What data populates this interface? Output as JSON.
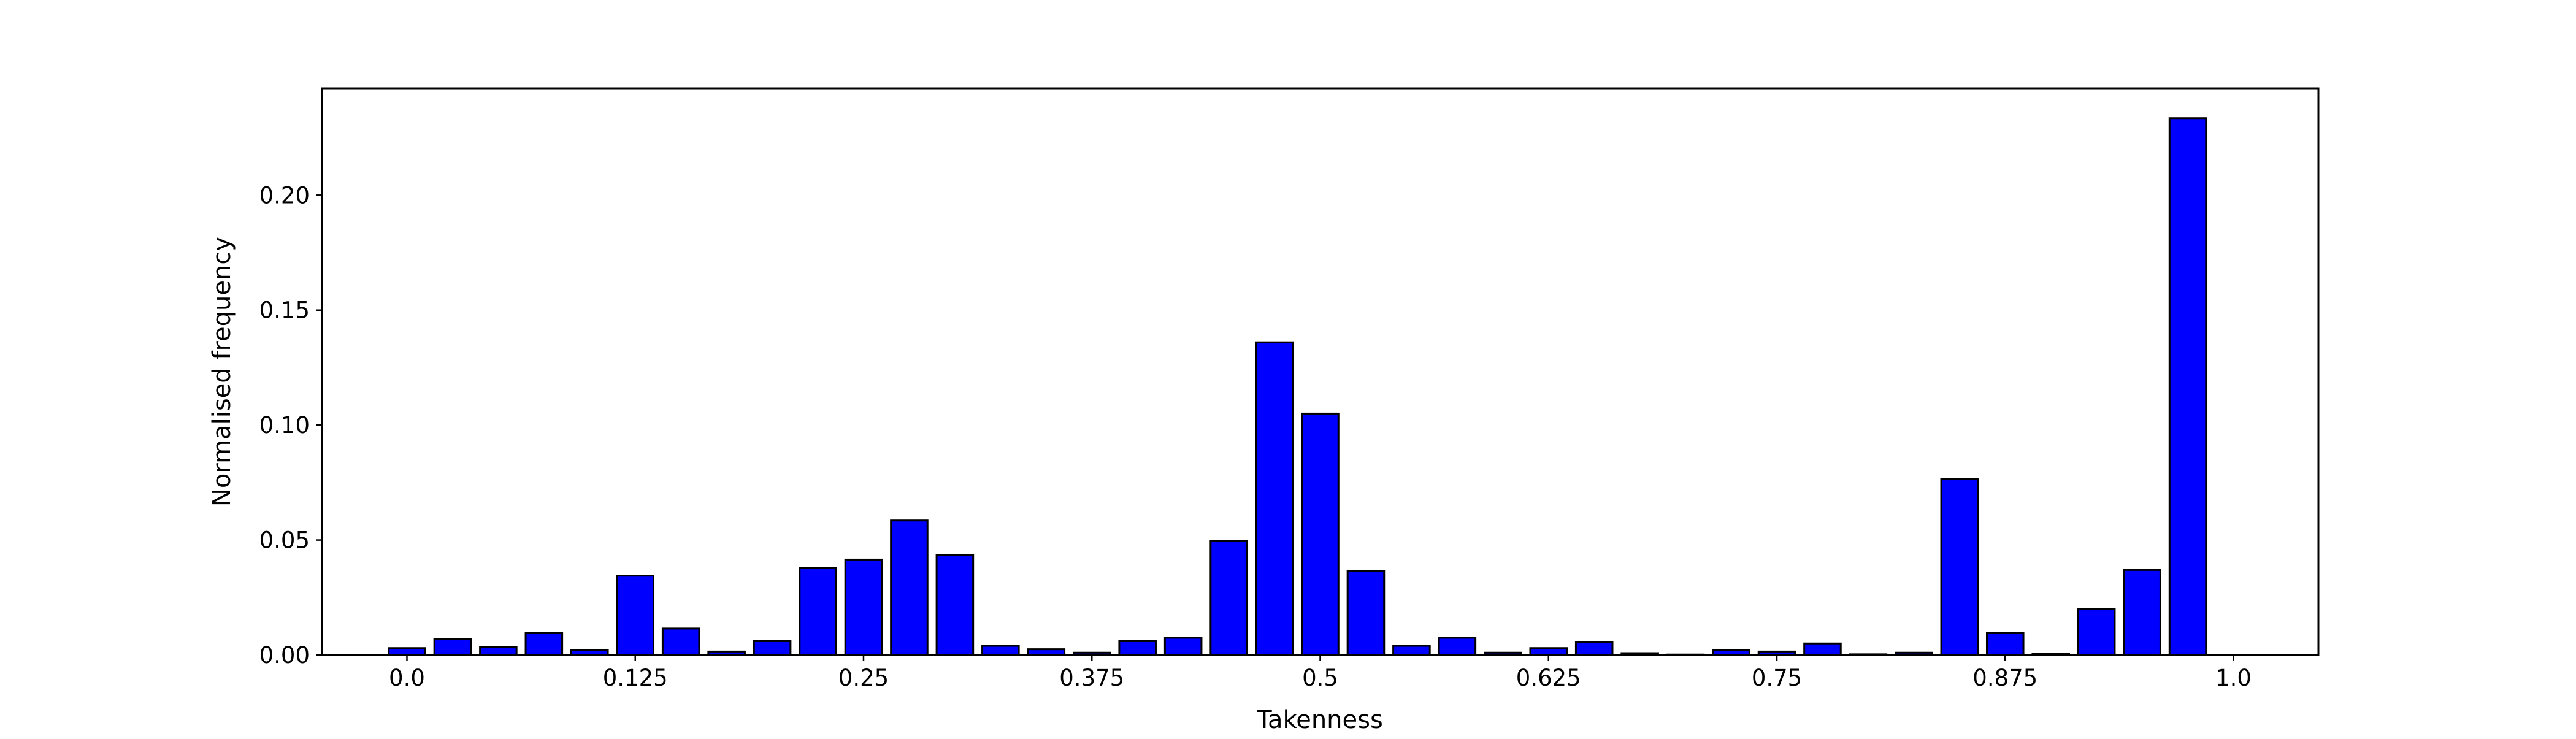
{
  "chart_data": {
    "type": "bar",
    "title": "",
    "xlabel": "Takenness",
    "ylabel": "Normalised frequency",
    "xlim": [
      -0.0465,
      1.0465
    ],
    "ylim": [
      0,
      0.2465
    ],
    "xticks": [
      0.0,
      0.125,
      0.25,
      0.375,
      0.5,
      0.625,
      0.75,
      0.875,
      1.0
    ],
    "xtick_labels": [
      "0.0",
      "0.125",
      "0.25",
      "0.375",
      "0.5",
      "0.625",
      "0.75",
      "0.875",
      "1.0"
    ],
    "yticks": [
      0.0,
      0.05,
      0.1,
      0.15,
      0.2
    ],
    "ytick_labels": [
      "0.00",
      "0.05",
      "0.10",
      "0.15",
      "0.20"
    ],
    "bar_width": 0.02,
    "bar_color": "#0000ff",
    "edge_color": "#000000",
    "x": [
      0.0,
      0.025,
      0.05,
      0.075,
      0.1,
      0.125,
      0.15,
      0.175,
      0.2,
      0.225,
      0.25,
      0.275,
      0.3,
      0.325,
      0.35,
      0.375,
      0.4,
      0.425,
      0.45,
      0.475,
      0.5,
      0.525,
      0.55,
      0.575,
      0.6,
      0.625,
      0.65,
      0.675,
      0.7,
      0.725,
      0.75,
      0.775,
      0.8,
      0.825,
      0.85,
      0.875,
      0.9,
      0.925,
      0.95,
      0.975
    ],
    "values": [
      0.003,
      0.007,
      0.0035,
      0.0095,
      0.002,
      0.0345,
      0.0115,
      0.0015,
      0.006,
      0.038,
      0.0415,
      0.0585,
      0.0435,
      0.004,
      0.0025,
      0.001,
      0.006,
      0.0075,
      0.0495,
      0.136,
      0.105,
      0.0365,
      0.004,
      0.0075,
      0.001,
      0.003,
      0.0055,
      0.0008,
      0.0002,
      0.002,
      0.0015,
      0.005,
      0.0003,
      0.001,
      0.0765,
      0.0095,
      0.0005,
      0.02,
      0.037,
      0.2335
    ]
  }
}
